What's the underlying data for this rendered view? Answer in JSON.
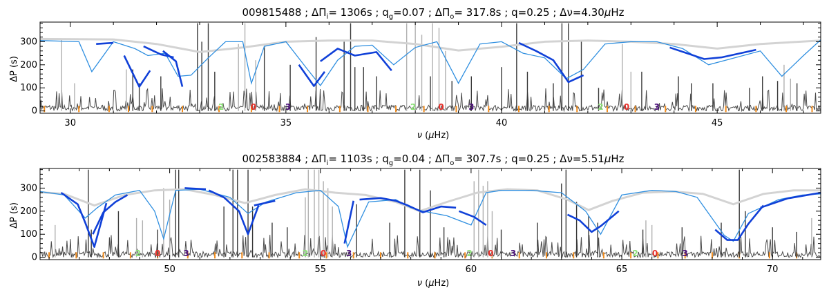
{
  "chart_data": [
    {
      "type": "line",
      "title": "009815488 ; ΔΠᵢ= 1306s ; q_g=0.07 ; ΔΠₒ= 317.8s ; q=0.25 ; Δν=4.30μHz",
      "title_parts": {
        "id": "009815488",
        "dpi": "1306s",
        "qg": "0.07",
        "dpo": "317.8s",
        "q": "0.25",
        "dnu": "4.30"
      },
      "xlabel": "ν (μHz)",
      "ylabel": "ΔP (s)",
      "xlim": [
        29.3,
        47.4
      ],
      "ylim": [
        -10,
        385
      ],
      "xticks": [
        30,
        35,
        40,
        45
      ],
      "yticks": [
        0,
        100,
        200,
        300
      ],
      "envelope": {
        "x": [
          29.3,
          31.0,
          32.0,
          33.0,
          34.0,
          35.0,
          36.0,
          37.0,
          38.0,
          39.0,
          40.0,
          41.0,
          42.0,
          43.0,
          44.0,
          45.0,
          46.0,
          47.4
        ],
        "y": [
          312,
          310,
          290,
          255,
          275,
          300,
          305,
          305,
          290,
          262,
          278,
          300,
          305,
          300,
          290,
          270,
          290,
          305
        ]
      },
      "model": {
        "x": [
          29.3,
          30.2,
          30.5,
          31.0,
          31.5,
          31.8,
          32.2,
          32.5,
          32.8,
          33.2,
          33.6,
          34.0,
          34.2,
          34.5,
          35.0,
          35.5,
          35.8,
          36.2,
          36.6,
          37.0,
          37.5,
          38.0,
          38.5,
          39.0,
          39.5,
          40.0,
          40.5,
          41.0,
          41.5,
          41.9,
          42.4,
          43.0,
          43.6,
          44.2,
          44.8,
          45.3,
          46.0,
          46.5,
          47.0,
          47.4
        ],
        "y": [
          305,
          300,
          170,
          300,
          270,
          240,
          250,
          150,
          155,
          230,
          300,
          300,
          120,
          280,
          300,
          180,
          110,
          220,
          280,
          285,
          200,
          275,
          300,
          120,
          290,
          300,
          250,
          230,
          140,
          180,
          290,
          300,
          300,
          270,
          200,
          225,
          260,
          150,
          240,
          308
        ]
      },
      "fits": [
        {
          "x": [
            30.6,
            31.0
          ],
          "y": [
            290,
            295
          ]
        },
        {
          "x": [
            31.25,
            31.6,
            31.85
          ],
          "y": [
            240,
            105,
            175
          ]
        },
        {
          "x": [
            31.7,
            32.1,
            32.4
          ],
          "y": [
            280,
            245,
            232
          ]
        },
        {
          "x": [
            32.15,
            32.45,
            32.6
          ],
          "y": [
            260,
            215,
            105
          ]
        },
        {
          "x": [
            35.3,
            35.65,
            35.9
          ],
          "y": [
            200,
            108,
            170
          ]
        },
        {
          "x": [
            35.8,
            36.2,
            36.6,
            37.1,
            37.45
          ],
          "y": [
            215,
            270,
            240,
            255,
            175
          ]
        },
        {
          "x": [
            40.4,
            40.8,
            41.2,
            41.55,
            41.9
          ],
          "y": [
            295,
            260,
            220,
            125,
            155
          ]
        },
        {
          "x": [
            43.9,
            44.3,
            44.7,
            45.1,
            45.9
          ],
          "y": [
            275,
            250,
            225,
            232,
            265
          ]
        }
      ],
      "mode_labels": [
        {
          "x": 33.5,
          "t": "2"
        },
        {
          "x": 34.25,
          "t": "0"
        },
        {
          "x": 35.05,
          "t": "3"
        },
        {
          "x": 37.95,
          "t": "2"
        },
        {
          "x": 38.6,
          "t": "0"
        },
        {
          "x": 39.3,
          "t": "3"
        },
        {
          "x": 42.3,
          "t": "2"
        },
        {
          "x": 42.9,
          "t": "0"
        },
        {
          "x": 43.6,
          "t": "3"
        }
      ],
      "peaks_dark": [
        [
          31.45,
          180
        ],
        [
          31.6,
          120
        ],
        [
          32.1,
          150
        ],
        [
          32.95,
          380
        ],
        [
          33.05,
          300
        ],
        [
          33.2,
          380
        ],
        [
          33.35,
          170
        ],
        [
          34.5,
          280
        ],
        [
          35.1,
          200
        ],
        [
          35.7,
          320
        ],
        [
          36.35,
          300
        ],
        [
          36.5,
          380
        ],
        [
          36.6,
          190
        ],
        [
          36.8,
          190
        ],
        [
          37.1,
          150
        ],
        [
          38.35,
          150
        ],
        [
          38.85,
          130
        ],
        [
          39.3,
          150
        ],
        [
          40.0,
          190
        ],
        [
          40.35,
          380
        ],
        [
          40.6,
          170
        ],
        [
          41.2,
          120
        ],
        [
          41.4,
          380
        ],
        [
          41.55,
          380
        ],
        [
          41.85,
          300
        ],
        [
          42.25,
          100
        ],
        [
          43.25,
          170
        ],
        [
          44.1,
          150
        ],
        [
          44.4,
          120
        ],
        [
          44.9,
          120
        ],
        [
          45.75,
          100
        ],
        [
          46.05,
          150
        ],
        [
          46.4,
          130
        ],
        [
          46.85,
          120
        ]
      ],
      "peaks_light": [
        [
          29.8,
          310
        ],
        [
          30.1,
          120
        ],
        [
          31.3,
          180
        ],
        [
          33.9,
          290
        ],
        [
          34.05,
          380
        ],
        [
          34.3,
          220
        ],
        [
          37.8,
          380
        ],
        [
          38.0,
          380
        ],
        [
          38.15,
          330
        ],
        [
          38.4,
          380
        ],
        [
          38.55,
          360
        ],
        [
          38.7,
          260
        ],
        [
          42.8,
          290
        ],
        [
          43.0,
          170
        ],
        [
          46.55,
          200
        ],
        [
          46.7,
          140
        ]
      ],
      "orange_ticks": [
        29.4,
        30.2,
        30.9,
        31.35,
        31.9,
        32.6,
        33.45,
        34.2,
        34.85,
        35.5,
        36.25,
        36.9,
        37.55,
        38.2,
        38.95,
        39.7,
        40.4,
        41.1,
        41.75,
        42.45,
        43.1,
        43.8,
        44.5,
        45.2,
        45.9,
        46.6,
        47.2
      ]
    },
    {
      "type": "line",
      "title": "002583884 ; ΔΠᵢ= 1103s ; q_g=0.04 ; ΔΠₒ= 307.7s ; q=0.25 ; Δν=5.51μHz",
      "title_parts": {
        "id": "002583884",
        "dpi": "1103s",
        "qg": "0.04",
        "dpo": "307.7s",
        "q": "0.25",
        "dnu": "5.51"
      },
      "xlabel": "ν (μHz)",
      "ylabel": "ΔP (s)",
      "xlim": [
        45.7,
        71.6
      ],
      "ylim": [
        -10,
        385
      ],
      "xticks": [
        50,
        55,
        60,
        65,
        70
      ],
      "yticks": [
        0,
        100,
        200,
        300
      ],
      "envelope": {
        "x": [
          45.7,
          46.5,
          47.5,
          48.5,
          49.5,
          50.5,
          51.5,
          52.5,
          53.5,
          54.5,
          55.5,
          56.5,
          57.5,
          58.3,
          59.2,
          60.2,
          61.2,
          62.2,
          63.2,
          63.9,
          64.7,
          65.7,
          66.7,
          67.7,
          68.7,
          69.7,
          70.7,
          71.6
        ],
        "y": [
          282,
          275,
          225,
          270,
          290,
          295,
          270,
          235,
          270,
          295,
          280,
          270,
          240,
          200,
          240,
          280,
          295,
          290,
          250,
          205,
          245,
          280,
          285,
          275,
          230,
          275,
          290,
          290
        ]
      },
      "model": {
        "x": [
          45.7,
          46.5,
          47.2,
          47.6,
          48.2,
          49.0,
          49.5,
          49.8,
          50.2,
          51.0,
          52.0,
          52.6,
          53.2,
          54.2,
          55.0,
          55.6,
          55.9,
          56.6,
          57.5,
          58.0,
          58.4,
          59.2,
          60.0,
          60.5,
          61.0,
          62.0,
          63.0,
          63.8,
          64.3,
          65.0,
          66.0,
          66.8,
          67.5,
          68.4,
          68.7,
          69.2,
          70.2,
          71.0,
          71.6
        ],
        "y": [
          285,
          270,
          170,
          215,
          270,
          290,
          200,
          80,
          290,
          295,
          260,
          190,
          240,
          280,
          290,
          220,
          45,
          240,
          250,
          215,
          200,
          180,
          140,
          280,
          290,
          290,
          280,
          200,
          100,
          270,
          290,
          285,
          260,
          95,
          70,
          190,
          250,
          270,
          275
        ]
      },
      "fits": [
        {
          "x": [
            46.4,
            46.95,
            47.2,
            47.5,
            47.9
          ],
          "y": [
            280,
            230,
            150,
            45,
            235
          ]
        },
        {
          "x": [
            47.45,
            47.8,
            48.2,
            48.6
          ],
          "y": [
            100,
            195,
            240,
            270
          ]
        },
        {
          "x": [
            50.5,
            51.2
          ],
          "y": [
            300,
            295
          ]
        },
        {
          "x": [
            51.3,
            51.8,
            52.3,
            52.6,
            52.95
          ],
          "y": [
            290,
            260,
            200,
            100,
            225
          ]
        },
        {
          "x": [
            52.8,
            53.5
          ],
          "y": [
            225,
            245
          ]
        },
        {
          "x": [
            55.8,
            56.1
          ],
          "y": [
            60,
            245
          ]
        },
        {
          "x": [
            56.3,
            57.0,
            57.5,
            57.9,
            58.4,
            59.0,
            59.5
          ],
          "y": [
            250,
            257,
            245,
            225,
            195,
            220,
            215
          ]
        },
        {
          "x": [
            59.6,
            60.1,
            60.5
          ],
          "y": [
            200,
            175,
            140
          ]
        },
        {
          "x": [
            63.2,
            63.6,
            64.0,
            64.3,
            64.9
          ],
          "y": [
            185,
            160,
            110,
            135,
            200
          ]
        },
        {
          "x": [
            68.1,
            68.5,
            68.85,
            69.2,
            69.7
          ],
          "y": [
            120,
            75,
            75,
            145,
            225
          ]
        },
        {
          "x": [
            69.6,
            70.5,
            71.6
          ],
          "y": [
            215,
            255,
            280
          ]
        }
      ],
      "mode_labels": [
        {
          "x": 48.95,
          "t": "2"
        },
        {
          "x": 49.6,
          "t": "0"
        },
        {
          "x": 50.55,
          "t": "3"
        },
        {
          "x": 54.5,
          "t": "2"
        },
        {
          "x": 55.1,
          "t": "0"
        },
        {
          "x": 55.95,
          "t": "3"
        },
        {
          "x": 59.95,
          "t": "2"
        },
        {
          "x": 60.65,
          "t": "0"
        },
        {
          "x": 61.4,
          "t": "3"
        },
        {
          "x": 65.45,
          "t": "2"
        },
        {
          "x": 66.1,
          "t": "0"
        },
        {
          "x": 67.1,
          "t": "3"
        }
      ],
      "peaks_dark": [
        [
          47.3,
          380
        ],
        [
          47.4,
          120
        ],
        [
          48.3,
          200
        ],
        [
          49.6,
          120
        ],
        [
          50.2,
          380
        ],
        [
          50.3,
          380
        ],
        [
          51.8,
          220
        ],
        [
          52.1,
          380
        ],
        [
          52.25,
          380
        ],
        [
          52.6,
          380
        ],
        [
          52.75,
          220
        ],
        [
          53.4,
          150
        ],
        [
          53.9,
          130
        ],
        [
          56.2,
          230
        ],
        [
          57.3,
          150
        ],
        [
          57.8,
          380
        ],
        [
          58.3,
          380
        ],
        [
          58.65,
          290
        ],
        [
          59.1,
          130
        ],
        [
          61.0,
          120
        ],
        [
          62.2,
          150
        ],
        [
          63.0,
          320
        ],
        [
          63.15,
          380
        ],
        [
          63.5,
          240
        ],
        [
          63.9,
          180
        ],
        [
          64.2,
          150
        ],
        [
          65.7,
          120
        ],
        [
          67.0,
          130
        ],
        [
          68.3,
          150
        ],
        [
          68.9,
          380
        ],
        [
          69.1,
          200
        ],
        [
          70.0,
          130
        ],
        [
          70.8,
          110
        ]
      ],
      "peaks_light": [
        [
          46.2,
          140
        ],
        [
          48.9,
          170
        ],
        [
          49.1,
          160
        ],
        [
          49.8,
          300
        ],
        [
          50.0,
          250
        ],
        [
          54.5,
          260
        ],
        [
          54.6,
          380
        ],
        [
          54.8,
          380
        ],
        [
          54.95,
          380
        ],
        [
          55.1,
          330
        ],
        [
          55.25,
          300
        ],
        [
          55.4,
          220
        ],
        [
          60.1,
          330
        ],
        [
          60.25,
          380
        ],
        [
          60.4,
          310
        ],
        [
          60.55,
          330
        ],
        [
          60.7,
          200
        ],
        [
          65.8,
          160
        ],
        [
          66.0,
          140
        ],
        [
          71.3,
          170
        ]
      ],
      "orange_ticks": [
        46.0,
        46.9,
        47.8,
        48.7,
        49.6,
        50.6,
        51.5,
        52.4,
        53.3,
        54.3,
        55.2,
        56.1,
        57.0,
        57.9,
        58.8,
        59.8,
        60.7,
        61.6,
        62.5,
        63.4,
        64.4,
        65.3,
        66.2,
        67.1,
        68.0,
        68.9,
        69.9,
        70.8
      ]
    }
  ]
}
